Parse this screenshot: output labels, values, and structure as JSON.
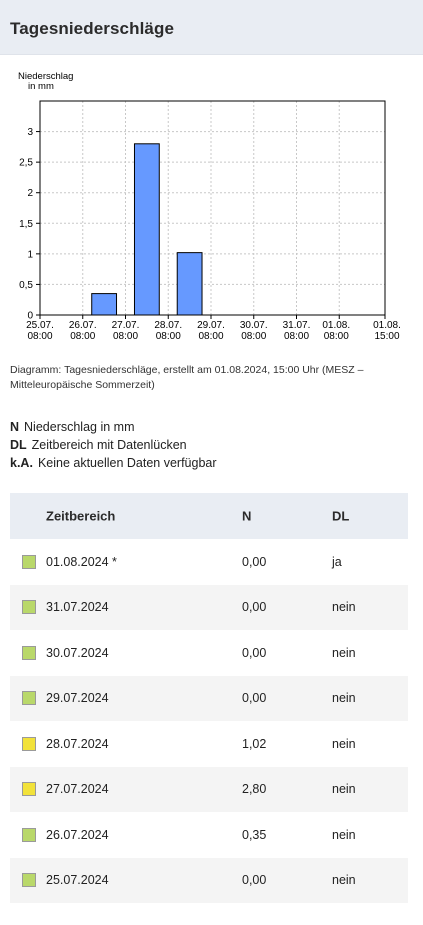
{
  "header": {
    "title": "Tagesniederschläge"
  },
  "chart_data": {
    "type": "bar",
    "ylabel_line1": "Niederschlag",
    "ylabel_line2": "in mm",
    "ylim": [
      0,
      3.5
    ],
    "yticks": [
      0,
      0.5,
      1,
      1.5,
      2,
      2.5,
      3
    ],
    "ytick_labels": [
      "0",
      "0,5",
      "1",
      "1,5",
      "2",
      "2,5",
      "3"
    ],
    "xtick_labels": [
      [
        "25.07.",
        "08:00"
      ],
      [
        "26.07.",
        "08:00"
      ],
      [
        "27.07.",
        "08:00"
      ],
      [
        "28.07.",
        "08:00"
      ],
      [
        "29.07.",
        "08:00"
      ],
      [
        "30.07.",
        "08:00"
      ],
      [
        "31.07.",
        "08:00"
      ],
      [
        "01.08.",
        "08:00"
      ],
      [
        "01.08.",
        "15:00"
      ]
    ],
    "bars": [
      {
        "from": "25.07. 08:00",
        "to": "26.07. 08:00",
        "value": 0.0
      },
      {
        "from": "26.07. 08:00",
        "to": "27.07. 08:00",
        "value": 0.35
      },
      {
        "from": "27.07. 08:00",
        "to": "28.07. 08:00",
        "value": 2.8
      },
      {
        "from": "28.07. 08:00",
        "to": "29.07. 08:00",
        "value": 1.02
      },
      {
        "from": "29.07. 08:00",
        "to": "30.07. 08:00",
        "value": 0.0
      },
      {
        "from": "30.07. 08:00",
        "to": "31.07. 08:00",
        "value": 0.0
      },
      {
        "from": "31.07. 08:00",
        "to": "01.08. 08:00",
        "value": 0.0
      },
      {
        "from": "01.08. 08:00",
        "to": "01.08. 15:00",
        "value": 0.0
      }
    ],
    "bar_color": "#6699ff",
    "grid": true
  },
  "caption": "Diagramm: Tagesniederschläge, erstellt am 01.08.2024, 15:00 Uhr (MESZ – Mitteleuropäische Sommerzeit)",
  "legend": [
    {
      "abbr": "N",
      "text": "Niederschlag in mm"
    },
    {
      "abbr": "DL",
      "text": "Zeitbereich mit Datenlücken"
    },
    {
      "abbr": "k.A.",
      "text": "Keine aktuellen Daten verfügbar"
    }
  ],
  "table": {
    "headers": {
      "date": "Zeitbereich",
      "n": "N",
      "dl": "DL"
    },
    "rows": [
      {
        "date": "01.08.2024 *",
        "n": "0,00",
        "dl": "ja",
        "color": "#b9d86a"
      },
      {
        "date": "31.07.2024",
        "n": "0,00",
        "dl": "nein",
        "color": "#b9d86a"
      },
      {
        "date": "30.07.2024",
        "n": "0,00",
        "dl": "nein",
        "color": "#b9d86a"
      },
      {
        "date": "29.07.2024",
        "n": "0,00",
        "dl": "nein",
        "color": "#b9d86a"
      },
      {
        "date": "28.07.2024",
        "n": "1,02",
        "dl": "nein",
        "color": "#f2e23a"
      },
      {
        "date": "27.07.2024",
        "n": "2,80",
        "dl": "nein",
        "color": "#f2e23a"
      },
      {
        "date": "26.07.2024",
        "n": "0,35",
        "dl": "nein",
        "color": "#b9d86a"
      },
      {
        "date": "25.07.2024",
        "n": "0,00",
        "dl": "nein",
        "color": "#b9d86a"
      }
    ]
  }
}
